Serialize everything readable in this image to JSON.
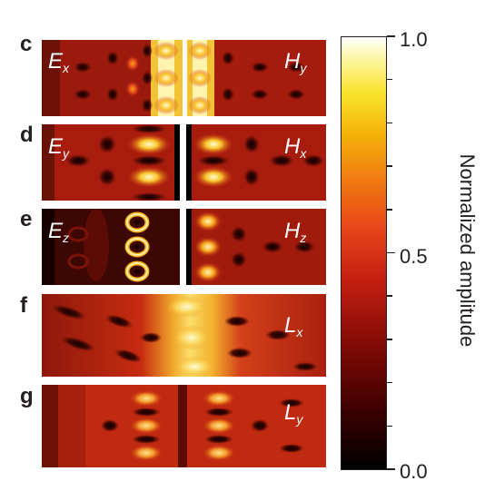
{
  "panels": [
    {
      "letter": "c",
      "left_label": {
        "main": "E",
        "sub": "x"
      },
      "right_label": {
        "main": "H",
        "sub": "y"
      }
    },
    {
      "letter": "d",
      "left_label": {
        "main": "E",
        "sub": "y"
      },
      "right_label": {
        "main": "H",
        "sub": "x"
      }
    },
    {
      "letter": "e",
      "left_label": {
        "main": "E",
        "sub": "z"
      },
      "right_label": {
        "main": "H",
        "sub": "z"
      }
    },
    {
      "letter": "f",
      "right_label": {
        "main": "L",
        "sub": "x"
      }
    },
    {
      "letter": "g",
      "right_label": {
        "main": "L",
        "sub": "y"
      }
    }
  ],
  "colorbar": {
    "title": "Normalized amplitude",
    "ticks": [
      {
        "value": 0.0,
        "label": "0.0"
      },
      {
        "value": 0.5,
        "label": "0.5"
      },
      {
        "value": 1.0,
        "label": "1.0"
      }
    ],
    "range": [
      0,
      1
    ],
    "colormap": "hot (black–red–yellow–white)"
  }
}
